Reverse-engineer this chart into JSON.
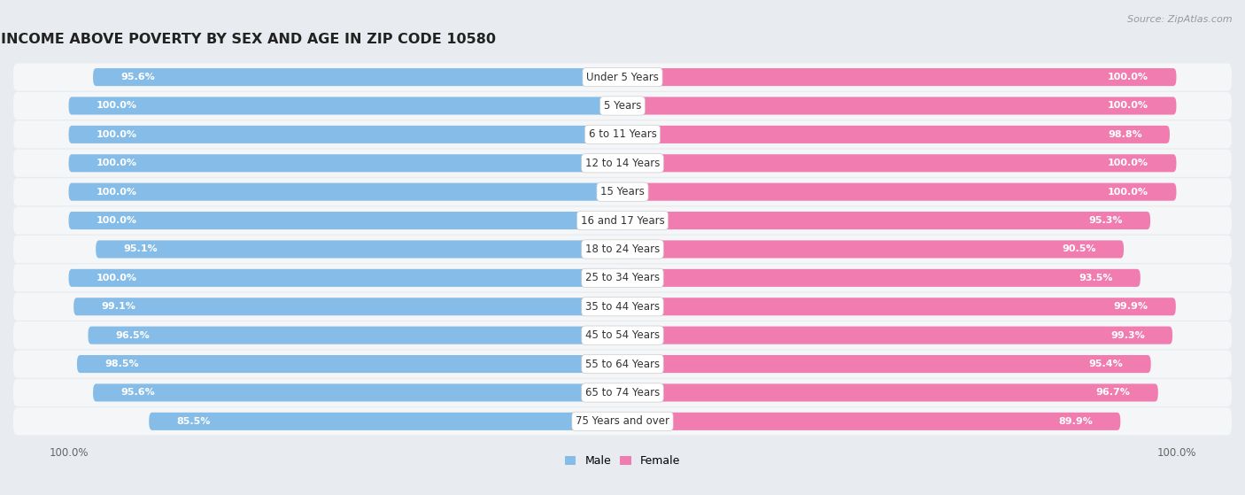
{
  "title": "INCOME ABOVE POVERTY BY SEX AND AGE IN ZIP CODE 10580",
  "source": "Source: ZipAtlas.com",
  "categories": [
    "Under 5 Years",
    "5 Years",
    "6 to 11 Years",
    "12 to 14 Years",
    "15 Years",
    "16 and 17 Years",
    "18 to 24 Years",
    "25 to 34 Years",
    "35 to 44 Years",
    "45 to 54 Years",
    "55 to 64 Years",
    "65 to 74 Years",
    "75 Years and over"
  ],
  "male_values": [
    95.6,
    100.0,
    100.0,
    100.0,
    100.0,
    100.0,
    95.1,
    100.0,
    99.1,
    96.5,
    98.5,
    95.6,
    85.5
  ],
  "female_values": [
    100.0,
    100.0,
    98.8,
    100.0,
    100.0,
    95.3,
    90.5,
    93.5,
    99.9,
    99.3,
    95.4,
    96.7,
    89.9
  ],
  "male_color": "#85bde8",
  "female_color": "#f07cb0",
  "bar_height": 0.62,
  "background_color": "#e8ecf0",
  "row_bg_color": "#f5f6f8",
  "xlim_left": -55,
  "xlim_right": 55,
  "title_fontsize": 11.5,
  "label_fontsize": 8.5,
  "value_fontsize": 8.0,
  "tick_fontsize": 8.5,
  "source_fontsize": 8,
  "legend_fontsize": 9
}
